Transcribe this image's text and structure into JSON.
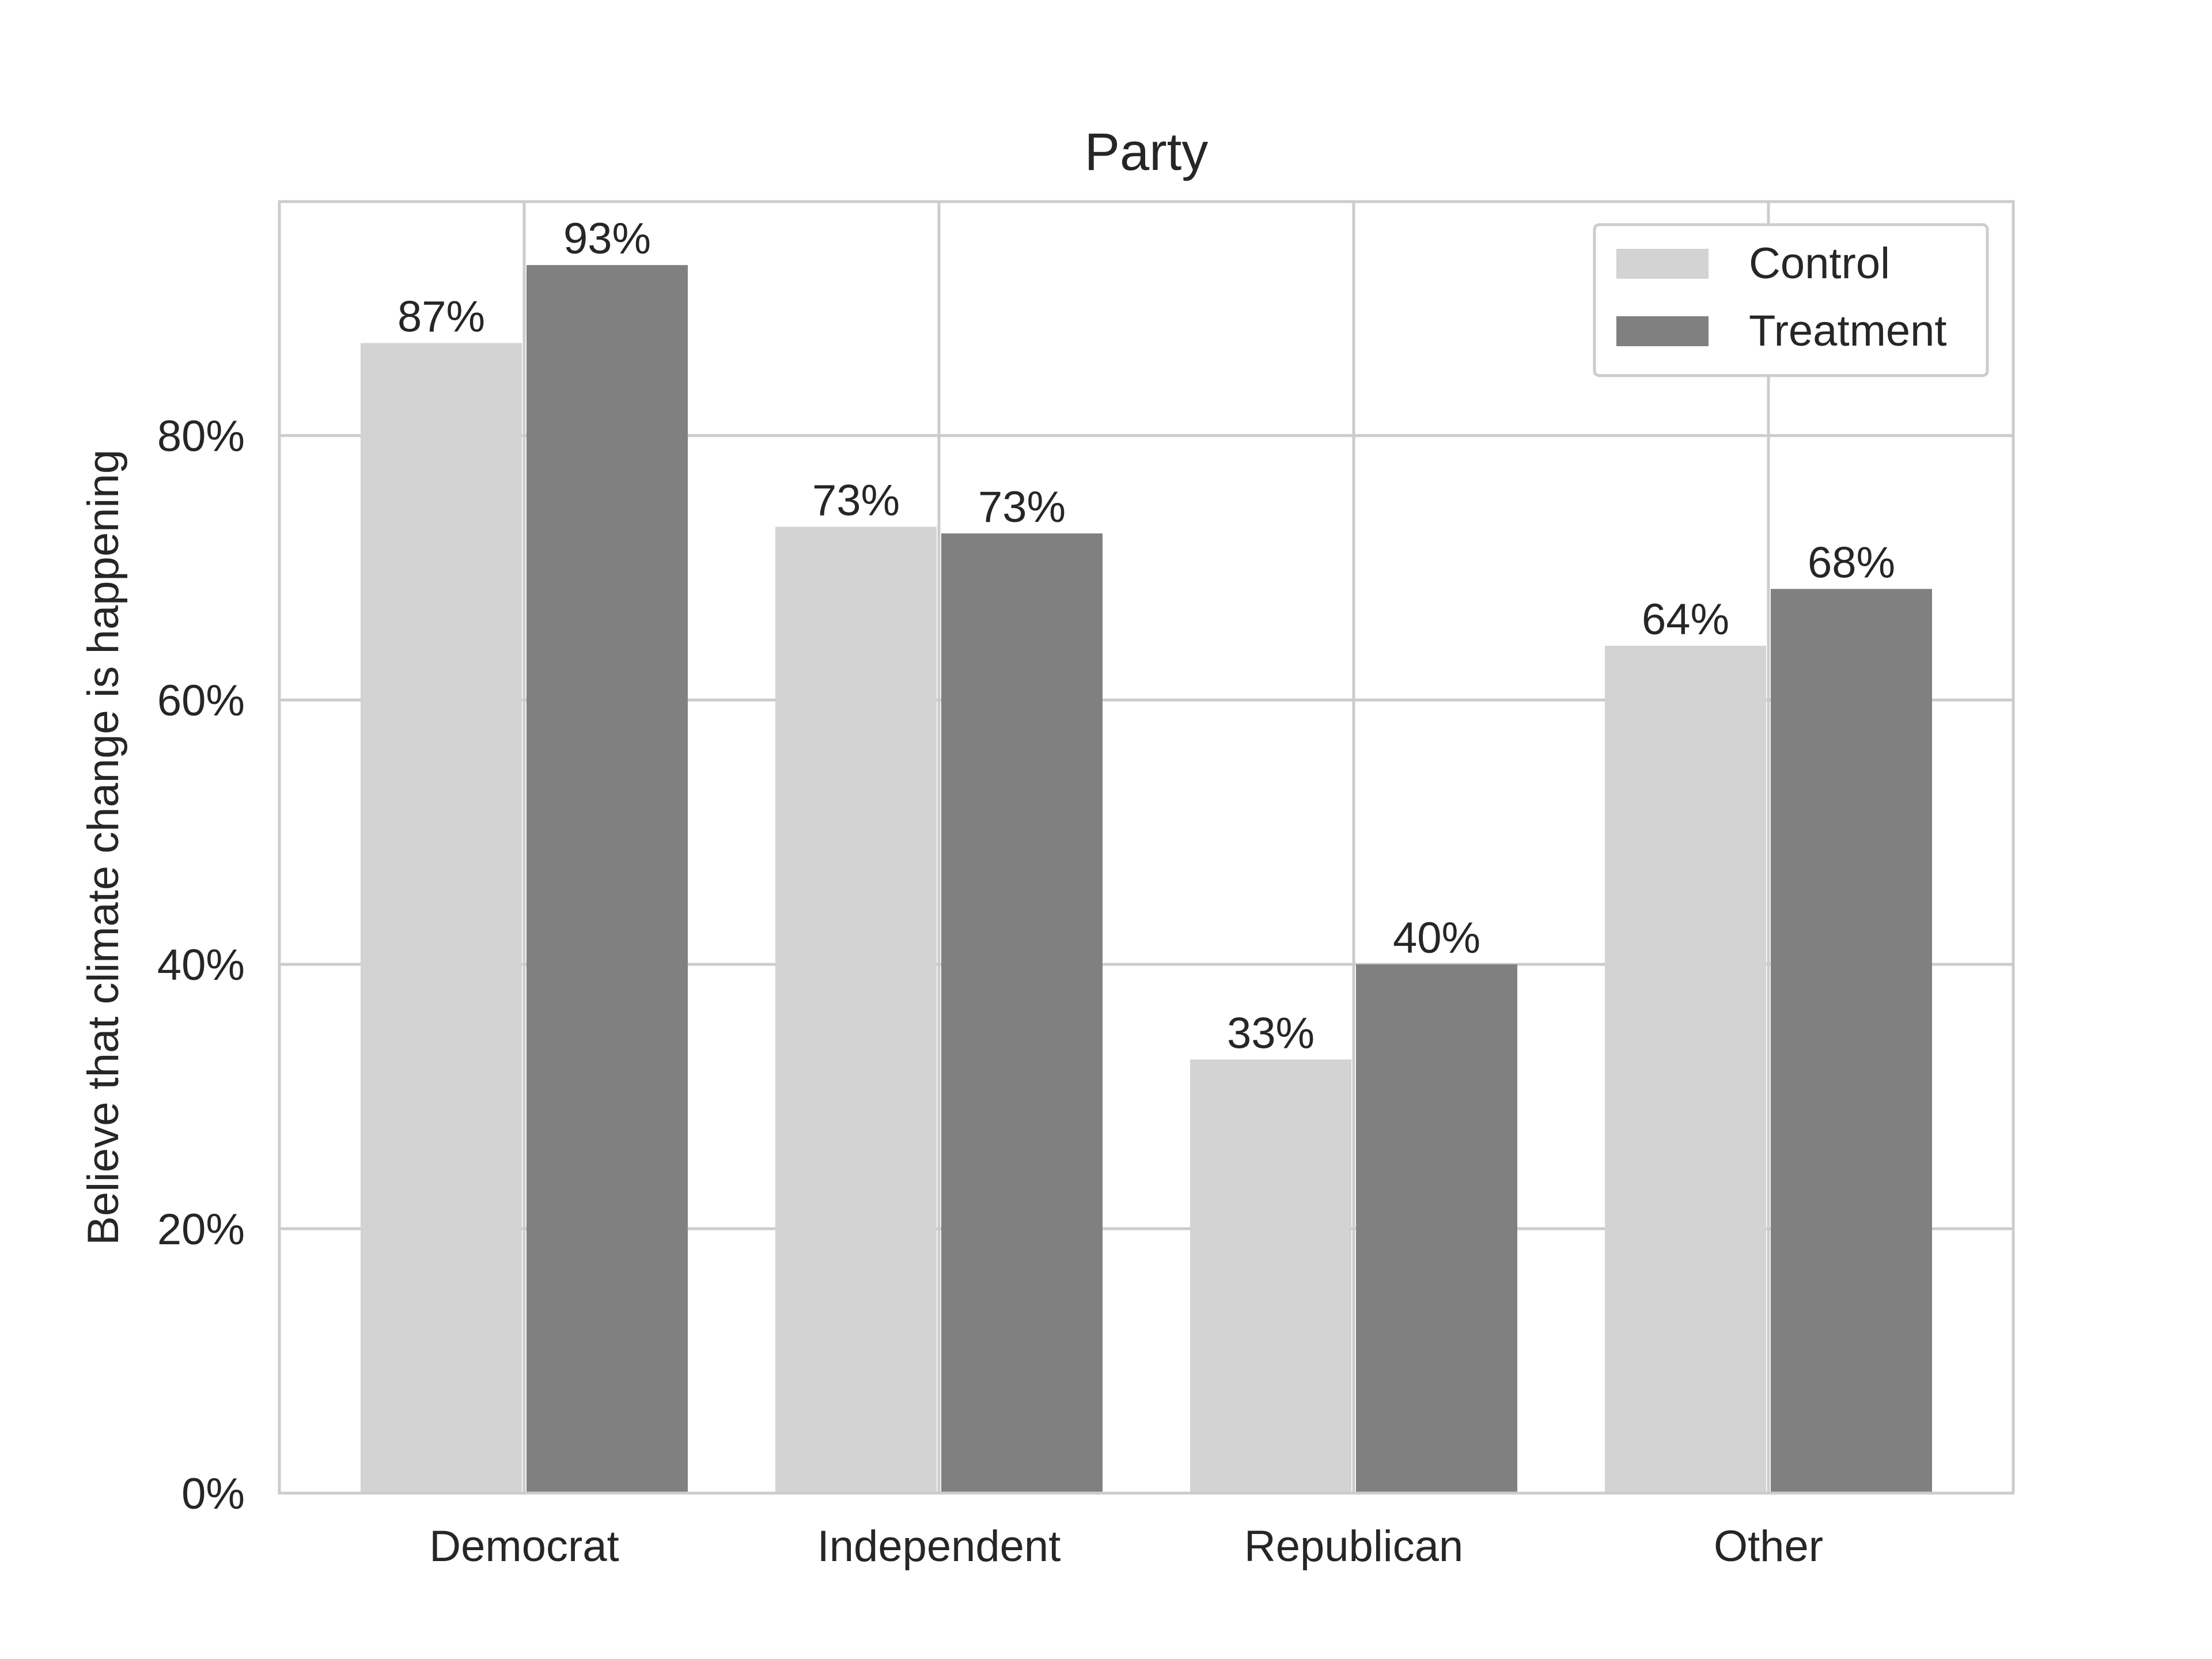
{
  "chart_data": {
    "type": "bar",
    "title": "Party",
    "xlabel": "",
    "ylabel": "Believe that climate change is happening",
    "categories": [
      "Democrat",
      "Independent",
      "Republican",
      "Other"
    ],
    "series": [
      {
        "name": "Control",
        "color": "#d3d3d3",
        "values": [
          0.87,
          0.731,
          0.328,
          0.641
        ],
        "labels": [
          "87%",
          "73%",
          "33%",
          "64%"
        ]
      },
      {
        "name": "Treatment",
        "color": "#808080",
        "values": [
          0.929,
          0.726,
          0.4,
          0.684
        ],
        "labels": [
          "93%",
          "73%",
          "40%",
          "68%"
        ]
      }
    ],
    "ylim": [
      0,
      0.977
    ],
    "yticks": [
      0,
      0.2,
      0.4,
      0.6,
      0.8
    ],
    "ytick_labels": [
      "0%",
      "20%",
      "40%",
      "60%",
      "80%"
    ],
    "grid": true,
    "legend": "upper-right"
  }
}
